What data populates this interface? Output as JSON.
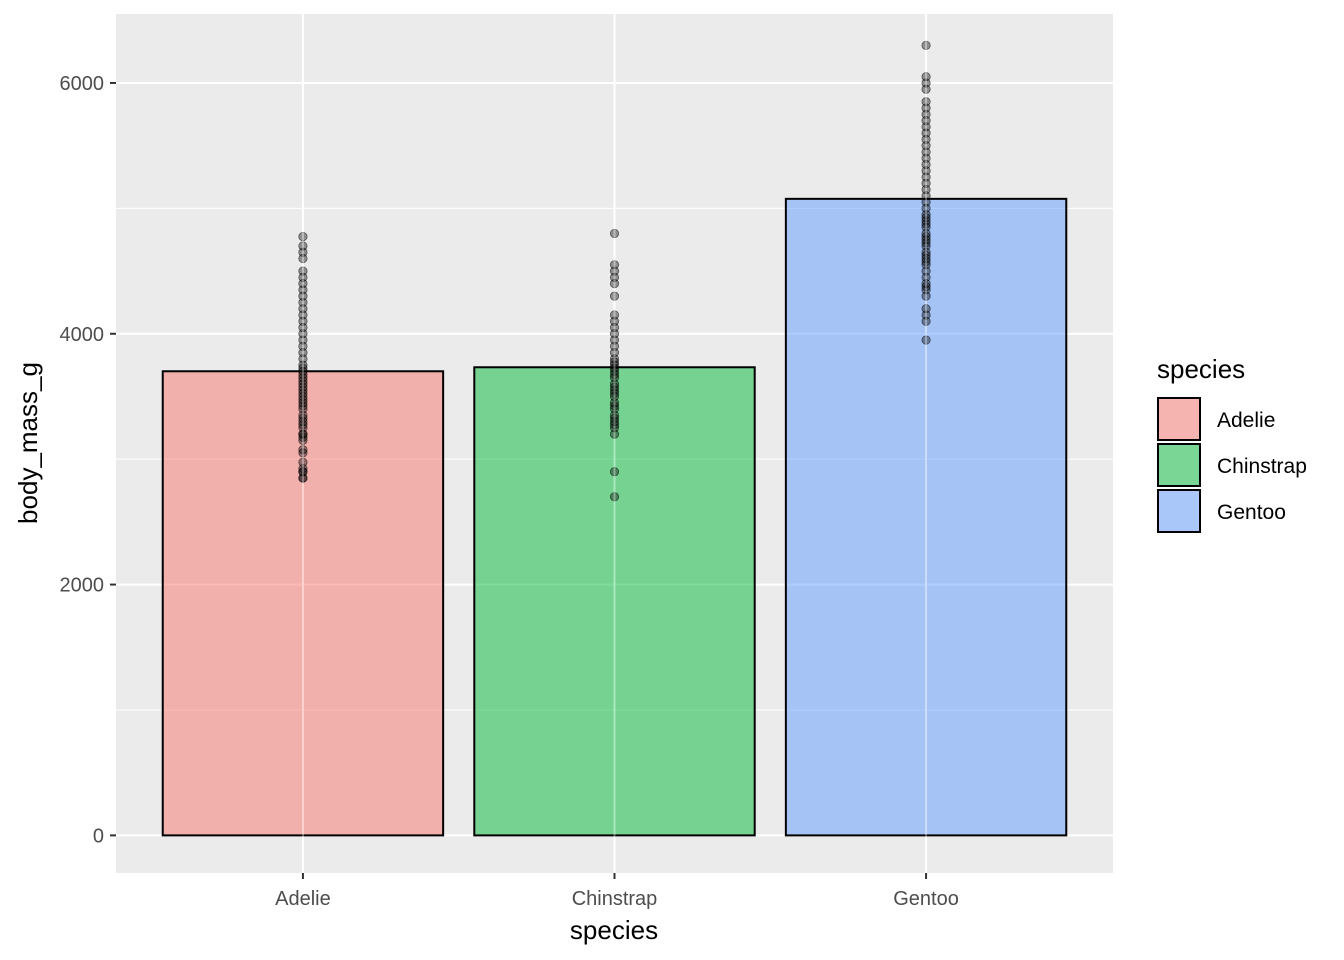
{
  "chart_data": {
    "type": "bar",
    "xlabel": "species",
    "ylabel": "body_mass_g",
    "categories": [
      "Adelie",
      "Chinstrap",
      "Gentoo"
    ],
    "values": [
      3701,
      3733,
      5076
    ],
    "colors": [
      "#F8766D",
      "#00BA38",
      "#619CFF"
    ],
    "ylim": [
      -300,
      6550
    ],
    "yticks": [
      0,
      2000,
      4000,
      6000
    ],
    "ytick_labels": [
      "0",
      "2000",
      "4000",
      "6000"
    ],
    "grid": true,
    "legend": {
      "title": "species",
      "position": "right",
      "items": [
        "Adelie",
        "Chinstrap",
        "Gentoo"
      ]
    },
    "points": {
      "Adelie": [
        2850,
        2850,
        2900,
        2900,
        2925,
        2975,
        3050,
        3075,
        3150,
        3175,
        3200,
        3200,
        3250,
        3275,
        3300,
        3325,
        3350,
        3400,
        3425,
        3450,
        3475,
        3500,
        3525,
        3550,
        3575,
        3600,
        3625,
        3650,
        3675,
        3700,
        3725,
        3750,
        3800,
        3850,
        3900,
        3950,
        4000,
        4050,
        4100,
        4150,
        4200,
        4250,
        4300,
        4350,
        4400,
        4450,
        4500,
        4600,
        4650,
        4700,
        4775
      ],
      "Chinstrap": [
        2700,
        2900,
        3200,
        3250,
        3275,
        3300,
        3325,
        3350,
        3400,
        3425,
        3450,
        3500,
        3525,
        3550,
        3575,
        3600,
        3650,
        3675,
        3700,
        3725,
        3750,
        3775,
        3800,
        3850,
        3900,
        3950,
        4000,
        4050,
        4100,
        4150,
        4300,
        4400,
        4450,
        4500,
        4550,
        4800
      ],
      "Gentoo": [
        3950,
        4100,
        4150,
        4200,
        4300,
        4350,
        4375,
        4400,
        4450,
        4500,
        4550,
        4575,
        4600,
        4625,
        4650,
        4700,
        4725,
        4750,
        4775,
        4800,
        4850,
        4875,
        4900,
        4925,
        4950,
        5000,
        5050,
        5100,
        5150,
        5200,
        5250,
        5300,
        5350,
        5400,
        5450,
        5500,
        5550,
        5600,
        5650,
        5700,
        5750,
        5800,
        5850,
        5950,
        6000,
        6050,
        6300
      ]
    }
  }
}
